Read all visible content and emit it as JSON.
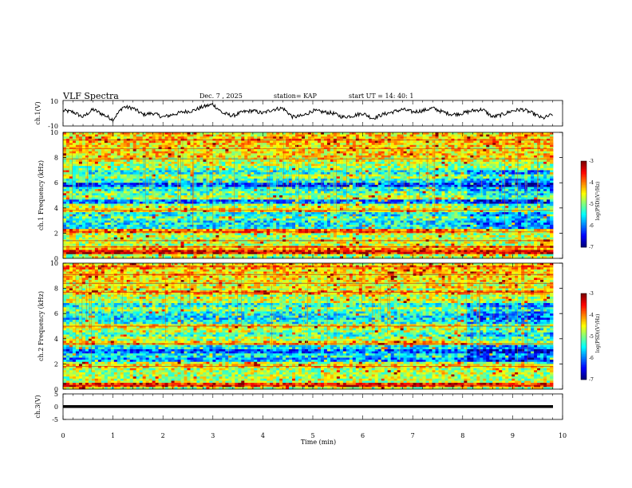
{
  "header": {
    "title": "VLF Spectra",
    "date": "Dec. 7 , 2025",
    "station": "station= KAP",
    "start": "start  UT =   14: 40: 1"
  },
  "chart_data": [
    {
      "type": "line",
      "name": "ch1-waveform",
      "ylabel": "ch.1(V)",
      "ylim": [
        -10,
        10
      ],
      "y_ticks": [
        "10",
        "-10"
      ],
      "x": [
        0.0,
        0.2,
        0.4,
        0.6,
        0.8,
        1.0,
        1.2,
        1.4,
        1.6,
        1.8,
        2.0,
        2.2,
        2.4,
        2.6,
        2.8,
        3.0,
        3.2,
        3.4,
        3.6,
        3.8,
        4.0,
        4.2,
        4.4,
        4.6,
        4.8,
        5.0,
        5.2,
        5.4,
        5.6,
        5.8,
        6.0,
        6.2,
        6.4,
        6.6,
        6.8,
        7.0,
        7.2,
        7.4,
        7.6,
        7.8,
        8.0,
        8.2,
        8.4,
        8.6,
        8.8,
        9.0,
        9.2,
        9.4,
        9.6,
        9.8
      ],
      "values": [
        2,
        1,
        -3,
        3,
        -1,
        -5,
        5,
        4,
        -1,
        0,
        -3,
        -1,
        1,
        2,
        5,
        7,
        0,
        -2,
        1,
        2,
        0,
        3,
        4,
        -3,
        -2,
        2,
        1,
        0,
        -3,
        -2,
        0,
        -4,
        -1,
        1,
        3,
        1,
        2,
        4,
        1,
        -1,
        0,
        2,
        3,
        -3,
        -1,
        2,
        3,
        0,
        -4,
        -1
      ]
    },
    {
      "type": "heatmap",
      "name": "ch1-spectrogram",
      "ylabel": "ch.1 Frequency (kHz)",
      "ylim": [
        0,
        10
      ],
      "y_ticks": [
        "0",
        "2",
        "4",
        "6",
        "8",
        "10"
      ],
      "colorbar": {
        "label": "log(PSD)(V²/Hz)",
        "range": [
          -7,
          -3
        ],
        "ticks": [
          "-3",
          "-4",
          "-5",
          "-6",
          "-7"
        ]
      },
      "bands_khz": [
        0.5,
        0.9,
        1.4,
        2.1,
        2.6,
        3.1,
        3.8,
        4.5,
        5.1,
        5.9,
        6.5,
        7.1,
        7.9,
        8.7,
        9.4
      ],
      "band_levels": [
        -3.5,
        -4.2,
        -4.6,
        -3.9,
        -5.5,
        -5.2,
        -4.4,
        -6.0,
        -5.1,
        -6.2,
        -4.9,
        -5.0,
        -4.6,
        -4.4,
        -4.2
      ]
    },
    {
      "type": "heatmap",
      "name": "ch2-spectrogram",
      "ylabel": "ch.2 Frequency (kHz)",
      "ylim": [
        0,
        10
      ],
      "y_ticks": [
        "0",
        "2",
        "4",
        "6",
        "8",
        "10"
      ],
      "colorbar": {
        "label": "log(PSD)(V²/Hz)",
        "range": [
          -7,
          -3
        ],
        "ticks": [
          "-3",
          "-4",
          "-5",
          "-6",
          "-7"
        ]
      },
      "bands_khz": [
        0.3,
        1.0,
        1.8,
        2.4,
        3.0,
        3.6,
        4.4,
        5.0,
        5.7,
        6.4,
        7.0,
        7.7,
        8.4,
        9.1,
        9.7
      ],
      "band_levels": [
        -3.6,
        -4.8,
        -4.4,
        -5.9,
        -6.1,
        -4.3,
        -5.2,
        -4.5,
        -5.6,
        -5.0,
        -4.7,
        -4.2,
        -4.6,
        -4.3,
        -4.1
      ]
    },
    {
      "type": "line",
      "name": "ch3-waveform",
      "ylabel": "ch.3(V)",
      "ylim": [
        -5,
        5
      ],
      "y_ticks": [
        "5",
        "0",
        "-5"
      ],
      "band": [
        -0.5,
        0.6
      ]
    }
  ],
  "x_axis": {
    "label": "Time  (min)",
    "range": [
      0,
      10
    ],
    "ticks": [
      "0",
      "1",
      "2",
      "3",
      "4",
      "5",
      "6",
      "7",
      "8",
      "9",
      "10"
    ]
  }
}
